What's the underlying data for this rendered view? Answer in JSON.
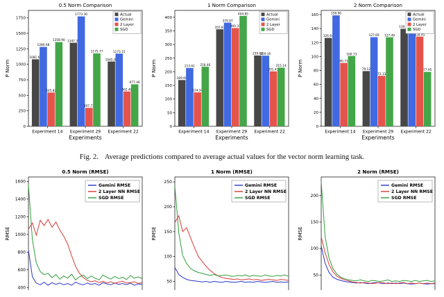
{
  "caption": {
    "label": "Fig. 2.",
    "text": "Average predictions compared to average actual values for the vector norm learning task."
  },
  "colors": {
    "actual": "#474747",
    "gemini": "#4169e1",
    "two_layer": "#e4544c",
    "sgd": "#44a648",
    "line_blue": "#2b35c8",
    "line_red": "#d43a34",
    "line_green": "#2f9c38"
  },
  "chart_data": [
    {
      "type": "bar",
      "title": "0.5 Norm Comparison",
      "xlabel": "Experiments",
      "ylabel": "P Norm",
      "categories": [
        "Experiment 14",
        "Experiment 29",
        "Experiment 22"
      ],
      "series": [
        {
          "name": "Actual",
          "color_key": "actual",
          "values": [
            1081.68,
            1347.36,
            1045.08
          ]
        },
        {
          "name": "Gemini",
          "color_key": "gemini",
          "values": [
            1280.68,
            1773.3,
            1173.15
          ]
        },
        {
          "name": "2 Layer",
          "color_key": "two_layer",
          "values": [
            545.82,
            297.73,
            562.48
          ]
        },
        {
          "name": "SGD",
          "color_key": "sgd",
          "values": [
            1358.9,
            1175.77,
            677.46
          ]
        }
      ],
      "yticks": [
        0,
        250,
        500,
        750,
        1000,
        1250,
        1500,
        1750
      ],
      "ylim": [
        0,
        1870
      ],
      "value_labels": true,
      "legend_position": "top-right"
    },
    {
      "type": "bar",
      "title": "1 Norm Comparison",
      "xlabel": "Experiments",
      "ylabel": "P Norm",
      "categories": [
        "Experiment 14",
        "Experiment 29",
        "Experiment 22"
      ],
      "series": [
        {
          "name": "Actual",
          "color_key": "actual",
          "values": [
            169.69,
            355.81,
            259.62
          ]
        },
        {
          "name": "Gemini",
          "color_key": "gemini",
          "values": [
            213.61,
            379.97,
            259.16
          ]
        },
        {
          "name": "2 Layer",
          "color_key": "two_layer",
          "values": [
            124.34,
            360.31,
            201.47
          ]
        },
        {
          "name": "SGD",
          "color_key": "sgd",
          "values": [
            218.46,
            404.85,
            215.14
          ]
        }
      ],
      "yticks": [
        0,
        50,
        100,
        150,
        200,
        250,
        300,
        350,
        400
      ],
      "ylim": [
        0,
        425
      ],
      "value_labels": true,
      "legend_position": "top-right"
    },
    {
      "type": "bar",
      "title": "2 Norm Comparison",
      "xlabel": "Experiments",
      "ylabel": "P Norm",
      "categories": [
        "Experiment 14",
        "Experiment 29",
        "Experiment 22"
      ],
      "series": [
        {
          "name": "Actual",
          "color_key": "actual",
          "values": [
            126.64,
            79.12,
            139.71
          ]
        },
        {
          "name": "Gemini",
          "color_key": "gemini",
          "values": [
            158.9,
            127.69,
            143.3
          ]
        },
        {
          "name": "2 Layer",
          "color_key": "two_layer",
          "values": [
            90.71,
            72.31,
            128.45
          ]
        },
        {
          "name": "SGD",
          "color_key": "sgd",
          "values": [
            100.73,
            127.49,
            77.95
          ]
        }
      ],
      "yticks": [
        0,
        20,
        40,
        60,
        80,
        100,
        120,
        140,
        160
      ],
      "ylim": [
        0,
        166
      ],
      "value_labels": true,
      "legend_position": "top-right"
    },
    {
      "type": "line",
      "title": "0.5 Norm (RMSE)",
      "ylabel": "RMSE",
      "yticks": [
        400,
        600,
        800,
        1000,
        1200,
        1400,
        1600
      ],
      "ylim": [
        300,
        1650
      ],
      "xaxis_cropped": true,
      "series": [
        {
          "name": "Gemini RMSE",
          "color_key": "line_blue",
          "values": [
            820,
            520,
            450,
            430,
            460,
            425,
            455,
            435,
            450,
            430,
            445,
            425,
            460,
            440,
            430,
            450,
            435,
            445,
            425,
            455,
            440,
            430,
            450,
            435,
            445,
            430,
            450,
            425,
            440,
            435
          ]
        },
        {
          "name": "2 Layer NN RMSE",
          "color_key": "line_red",
          "values": [
            1060,
            1130,
            990,
            1160,
            1100,
            1170,
            1080,
            1140,
            1050,
            980,
            890,
            760,
            640,
            560,
            510,
            480,
            465,
            475,
            455,
            470,
            450,
            465,
            445,
            460,
            470,
            450,
            455,
            465,
            445,
            455
          ]
        },
        {
          "name": "SGD RMSE",
          "color_key": "line_green",
          "values": [
            1560,
            940,
            680,
            580,
            545,
            560,
            510,
            545,
            495,
            530,
            505,
            550,
            485,
            520,
            540,
            500,
            530,
            505,
            485,
            540,
            515,
            495,
            525,
            500,
            515,
            490,
            535,
            505,
            520,
            500
          ]
        }
      ]
    },
    {
      "type": "line",
      "title": "1 Norm (RMSE)",
      "ylabel": "RMSE",
      "yticks": [
        50,
        100,
        150,
        200,
        250
      ],
      "ylim": [
        20,
        260
      ],
      "xaxis_cropped": true,
      "series": [
        {
          "name": "Gemini RMSE",
          "color_key": "line_blue",
          "values": [
            78,
            64,
            58,
            54,
            52,
            51,
            50,
            49,
            50,
            48,
            50,
            49,
            48,
            50,
            49,
            48,
            49,
            50,
            48,
            49,
            48,
            50,
            49,
            48,
            49,
            50,
            48,
            49,
            48,
            49
          ]
        },
        {
          "name": "2 Layer NN RMSE",
          "color_key": "line_red",
          "values": [
            168,
            182,
            150,
            158,
            138,
            118,
            100,
            90,
            80,
            72,
            66,
            61,
            58,
            56,
            55,
            54,
            55,
            53,
            54,
            55,
            53,
            54,
            52,
            53,
            54,
            53,
            52,
            54,
            53,
            52
          ]
        },
        {
          "name": "SGD RMSE",
          "color_key": "line_green",
          "values": [
            242,
            148,
            102,
            86,
            76,
            71,
            68,
            66,
            64,
            62,
            64,
            61,
            62,
            63,
            61,
            60,
            62,
            61,
            63,
            60,
            62,
            61,
            60,
            63,
            61,
            60,
            62,
            61,
            63,
            60
          ]
        }
      ]
    },
    {
      "type": "line",
      "title": "2 Norm (RMSE)",
      "ylabel": "RMSE",
      "yticks": [
        50,
        100,
        150,
        200
      ],
      "ylim": [
        10,
        235
      ],
      "xaxis_cropped": true,
      "series": [
        {
          "name": "Gemini RMSE",
          "color_key": "line_blue",
          "values": [
            105,
            72,
            55,
            46,
            42,
            40,
            38,
            37,
            36,
            35,
            36,
            35,
            34,
            35,
            36,
            35,
            34,
            35,
            34,
            35,
            34,
            35,
            34,
            33,
            34,
            35,
            34,
            33,
            34,
            34
          ]
        },
        {
          "name": "2 Layer NN RMSE",
          "color_key": "line_red",
          "values": [
            122,
            92,
            70,
            56,
            48,
            44,
            41,
            39,
            37,
            36,
            35,
            36,
            35,
            34,
            35,
            36,
            35,
            34,
            35,
            34,
            35,
            36,
            34,
            35,
            34,
            35,
            34,
            35,
            34,
            35
          ]
        },
        {
          "name": "SGD RMSE",
          "color_key": "line_green",
          "values": [
            226,
            122,
            82,
            62,
            52,
            46,
            43,
            41,
            40,
            39,
            41,
            39,
            38,
            40,
            39,
            38,
            39,
            41,
            38,
            39,
            38,
            40,
            39,
            38,
            40,
            38,
            39,
            40,
            38,
            39
          ]
        }
      ]
    }
  ]
}
